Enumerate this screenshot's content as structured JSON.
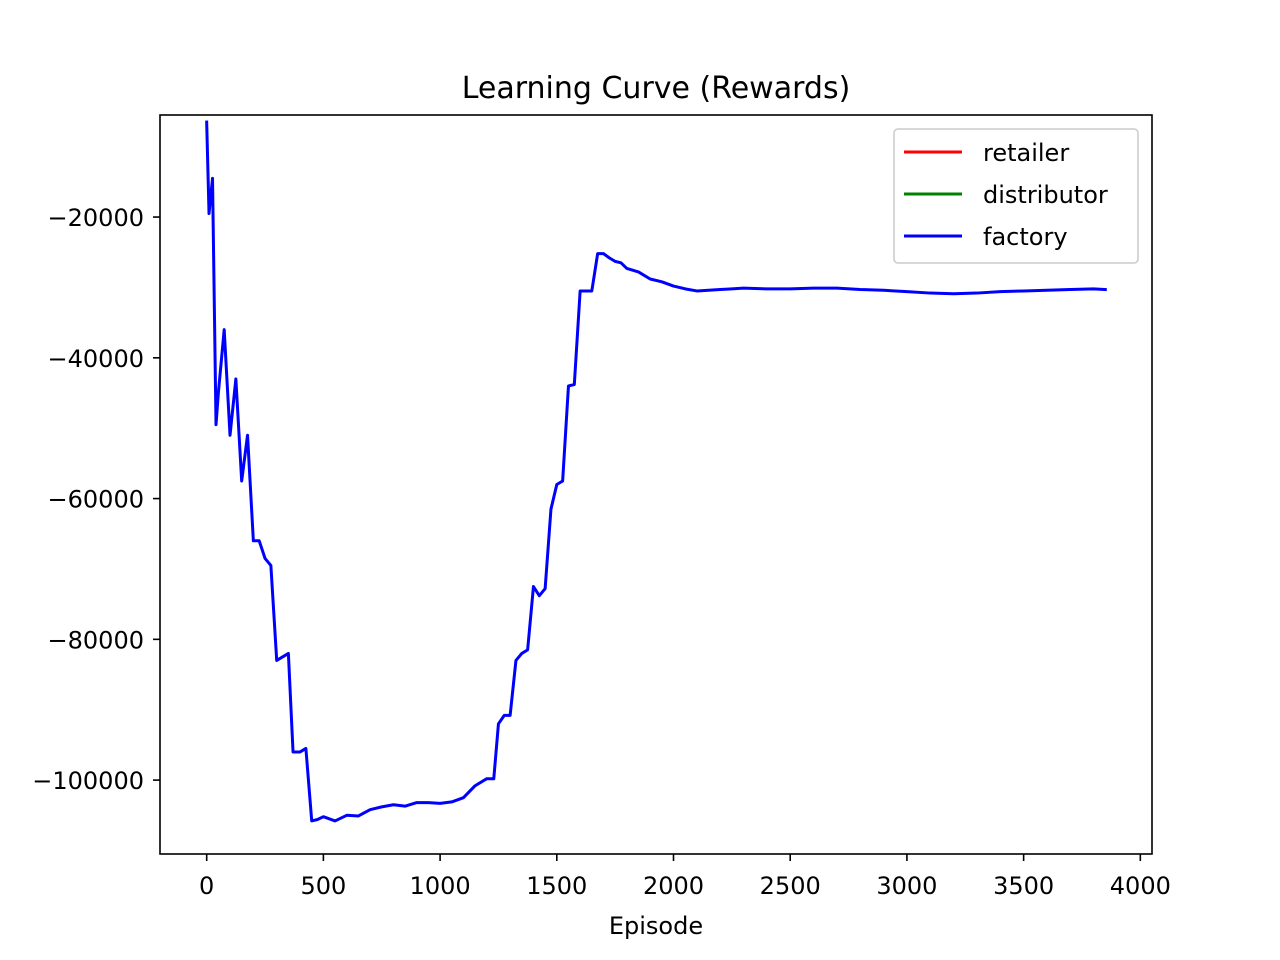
{
  "chart_data": {
    "type": "line",
    "title": "Learning Curve (Rewards)",
    "xlabel": "Episode",
    "ylabel": "",
    "xlim": [
      -200,
      4050
    ],
    "ylim": [
      -110500,
      -5500
    ],
    "xticks": [
      0,
      500,
      1000,
      1500,
      2000,
      2500,
      3000,
      3500,
      4000
    ],
    "xtick_labels": [
      "0",
      "500",
      "1000",
      "1500",
      "2000",
      "2500",
      "3000",
      "3500",
      "4000"
    ],
    "yticks": [
      -20000,
      -40000,
      -60000,
      -80000,
      -100000
    ],
    "ytick_labels": [
      "−20000",
      "−40000",
      "−60000",
      "−80000",
      "−100000"
    ],
    "grid": false,
    "legend_position": "top-right",
    "series": [
      {
        "name": "retailer",
        "color": "#ff0000",
        "x": [],
        "y": []
      },
      {
        "name": "distributor",
        "color": "#008000",
        "x": [],
        "y": []
      },
      {
        "name": "factory",
        "color": "#0000ff",
        "x": [
          0,
          10,
          25,
          40,
          50,
          75,
          100,
          125,
          150,
          175,
          200,
          225,
          250,
          275,
          300,
          325,
          350,
          370,
          400,
          425,
          450,
          475,
          500,
          550,
          600,
          650,
          700,
          750,
          800,
          850,
          900,
          950,
          1000,
          1050,
          1100,
          1150,
          1200,
          1230,
          1250,
          1275,
          1300,
          1325,
          1350,
          1375,
          1400,
          1425,
          1450,
          1475,
          1500,
          1525,
          1550,
          1575,
          1600,
          1625,
          1650,
          1675,
          1700,
          1725,
          1750,
          1775,
          1800,
          1850,
          1900,
          1950,
          2000,
          2050,
          2100,
          2150,
          2200,
          2250,
          2300,
          2400,
          2500,
          2600,
          2700,
          2800,
          2900,
          3000,
          3100,
          3200,
          3300,
          3400,
          3500,
          3600,
          3700,
          3800,
          3850
        ],
        "y": [
          -6500,
          -19500,
          -14500,
          -49500,
          -45000,
          -36000,
          -51000,
          -43000,
          -57500,
          -51000,
          -66000,
          -66000,
          -68500,
          -69500,
          -83000,
          -82500,
          -82000,
          -96000,
          -96000,
          -95500,
          -105800,
          -105600,
          -105200,
          -105800,
          -105000,
          -105100,
          -104200,
          -103800,
          -103500,
          -103700,
          -103200,
          -103200,
          -103300,
          -103100,
          -102500,
          -100800,
          -99800,
          -99800,
          -92000,
          -90800,
          -90800,
          -83000,
          -82000,
          -81500,
          -72500,
          -73800,
          -72800,
          -61500,
          -58000,
          -57500,
          -44000,
          -43800,
          -30500,
          -30500,
          -30500,
          -25200,
          -25200,
          -25800,
          -26300,
          -26500,
          -27300,
          -27800,
          -28800,
          -29200,
          -29800,
          -30200,
          -30500,
          -30400,
          -30300,
          -30200,
          -30100,
          -30200,
          -30200,
          -30100,
          -30100,
          -30300,
          -30400,
          -30600,
          -30800,
          -30900,
          -30800,
          -30600,
          -30500,
          -30400,
          -30300,
          -30200,
          -30300
        ]
      }
    ]
  }
}
